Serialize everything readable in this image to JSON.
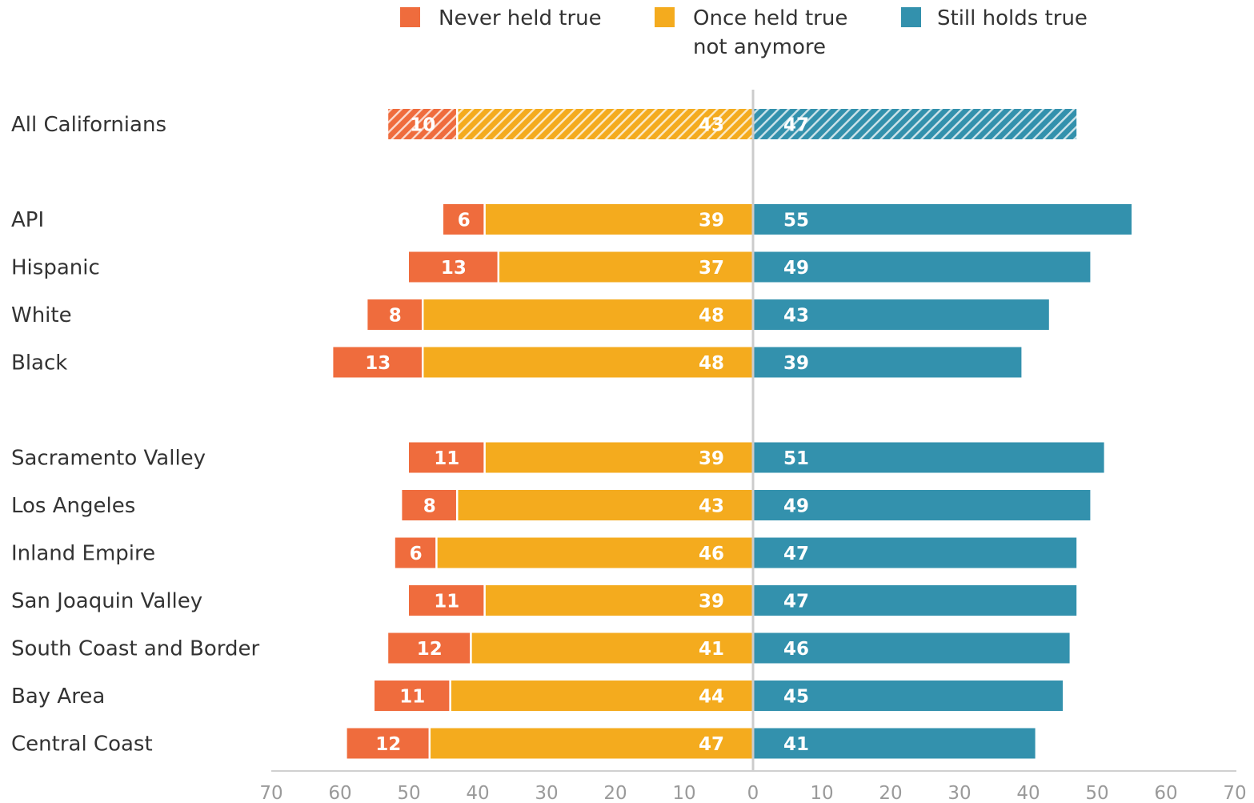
{
  "chart_data": {
    "type": "bar",
    "orientation": "horizontal-diverging",
    "title": "",
    "xlabel": "",
    "ylabel": "",
    "xlim": [
      -70,
      70
    ],
    "grid": false,
    "legend_position": "top",
    "colors": {
      "never": "#ef6c3d",
      "once": "#f4ab1e",
      "still": "#3391ad"
    },
    "series": [
      {
        "key": "never",
        "name_lines": [
          "Never held true"
        ]
      },
      {
        "key": "once",
        "name_lines": [
          "Once held true",
          "not anymore"
        ]
      },
      {
        "key": "still",
        "name_lines": [
          "Still holds true"
        ]
      }
    ],
    "ticks": [
      {
        "value": -70,
        "label": "70"
      },
      {
        "value": -60,
        "label": "60"
      },
      {
        "value": -50,
        "label": "50"
      },
      {
        "value": -40,
        "label": "40"
      },
      {
        "value": -30,
        "label": "30"
      },
      {
        "value": -20,
        "label": "20"
      },
      {
        "value": -10,
        "label": "10"
      },
      {
        "value": 0,
        "label": "0"
      },
      {
        "value": 10,
        "label": "10"
      },
      {
        "value": 20,
        "label": "20"
      },
      {
        "value": 30,
        "label": "30"
      },
      {
        "value": 40,
        "label": "40"
      },
      {
        "value": 50,
        "label": "50"
      },
      {
        "value": 60,
        "label": "60"
      },
      {
        "value": 70,
        "label": "70"
      }
    ],
    "categories": [
      {
        "label": "All Californians",
        "never": 10,
        "once": 43,
        "still": 47,
        "hatched": true,
        "group": 0
      },
      {
        "label": "API",
        "never": 6,
        "once": 39,
        "still": 55,
        "hatched": false,
        "group": 1
      },
      {
        "label": "Hispanic",
        "never": 13,
        "once": 37,
        "still": 49,
        "hatched": false,
        "group": 1
      },
      {
        "label": "White",
        "never": 8,
        "once": 48,
        "still": 43,
        "hatched": false,
        "group": 1
      },
      {
        "label": "Black",
        "never": 13,
        "once": 48,
        "still": 39,
        "hatched": false,
        "group": 1
      },
      {
        "label": "Sacramento Valley",
        "never": 11,
        "once": 39,
        "still": 51,
        "hatched": false,
        "group": 2
      },
      {
        "label": "Los Angeles",
        "never": 8,
        "once": 43,
        "still": 49,
        "hatched": false,
        "group": 2
      },
      {
        "label": "Inland Empire",
        "never": 6,
        "once": 46,
        "still": 47,
        "hatched": false,
        "group": 2
      },
      {
        "label": "San Joaquin Valley",
        "never": 11,
        "once": 39,
        "still": 47,
        "hatched": false,
        "group": 2
      },
      {
        "label": "South Coast and Border",
        "never": 12,
        "once": 41,
        "still": 46,
        "hatched": false,
        "group": 2
      },
      {
        "label": "Bay Area",
        "never": 11,
        "once": 44,
        "still": 45,
        "hatched": false,
        "group": 2
      },
      {
        "label": "Central Coast",
        "never": 12,
        "once": 47,
        "still": 41,
        "hatched": false,
        "group": 2
      }
    ]
  }
}
